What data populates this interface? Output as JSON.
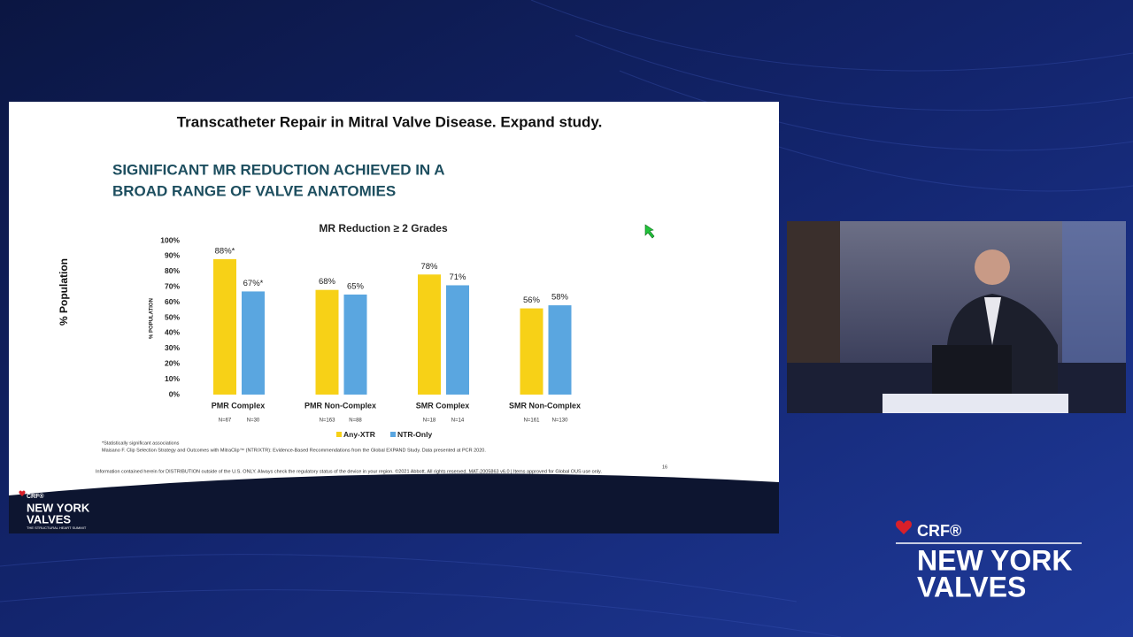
{
  "slide": {
    "header": "Transcatheter Repair in Mitral Valve Disease. Expand study.",
    "headline": [
      "SIGNIFICANT MR REDUCTION ACHIEVED IN A",
      "BROAD RANGE OF VALVE ANATOMIES"
    ],
    "side_label": "% Population",
    "footnotes": [
      "*Statistically significant associations",
      "Maisano F. Clip Selection Strategy and Outcomes with MitraClip™ (NTR/XTR): Evidence-Based Recommendations from the Global EXPAND Study. Data presented at PCR 2020."
    ],
    "disclaimer": "Information contained herein for DISTRIBUTION outside of the U.S. ONLY. Always check the regulatory status of the device in your region. ©2021 Abbott. All rights reserved. MAT-2005863 v6.0 | Items approved for Global OUS use only.",
    "page_number": "16",
    "logo": {
      "crf": "CRF®",
      "name": [
        "NEW YORK",
        "VALVES"
      ],
      "tagline": "THE STRUCTURAL HEART SUMMIT"
    }
  },
  "chart_data": {
    "type": "bar",
    "title": "MR Reduction ≥ 2 Grades",
    "ylabel": "% POPULATION",
    "categories": [
      "PMR Complex",
      "PMR Non-Complex",
      "SMR Complex",
      "SMR Non-Complex"
    ],
    "sample_sizes": [
      [
        "N=67",
        "N=30"
      ],
      [
        "N=163",
        "N=88"
      ],
      [
        "N=18",
        "N=14"
      ],
      [
        "N=161",
        "N=130"
      ]
    ],
    "series": [
      {
        "name": "Any-XTR",
        "color": "#f7d117",
        "values": [
          88,
          68,
          78,
          56
        ],
        "value_labels": [
          "88%*",
          "68%",
          "78%",
          "56%"
        ]
      },
      {
        "name": "NTR-Only",
        "color": "#5aa6e0",
        "values": [
          67,
          65,
          71,
          58
        ],
        "value_labels": [
          "67%*",
          "65%",
          "71%",
          "58%"
        ]
      }
    ],
    "ylim": [
      0,
      100
    ],
    "yticks": [
      {
        "value": 0,
        "label": "0%"
      },
      {
        "value": 10,
        "label": "10%"
      },
      {
        "value": 20,
        "label": "20%"
      },
      {
        "value": 30,
        "label": "30%"
      },
      {
        "value": 40,
        "label": "40%"
      },
      {
        "value": 50,
        "label": "50%"
      },
      {
        "value": 60,
        "label": "60%"
      },
      {
        "value": 70,
        "label": "70%"
      },
      {
        "value": 80,
        "label": "80%"
      },
      {
        "value": 90,
        "label": "90%"
      },
      {
        "value": 100,
        "label": "100%"
      }
    ]
  },
  "branding": {
    "crf": "CRF®",
    "name": [
      "NEW YORK",
      "VALVES"
    ]
  }
}
